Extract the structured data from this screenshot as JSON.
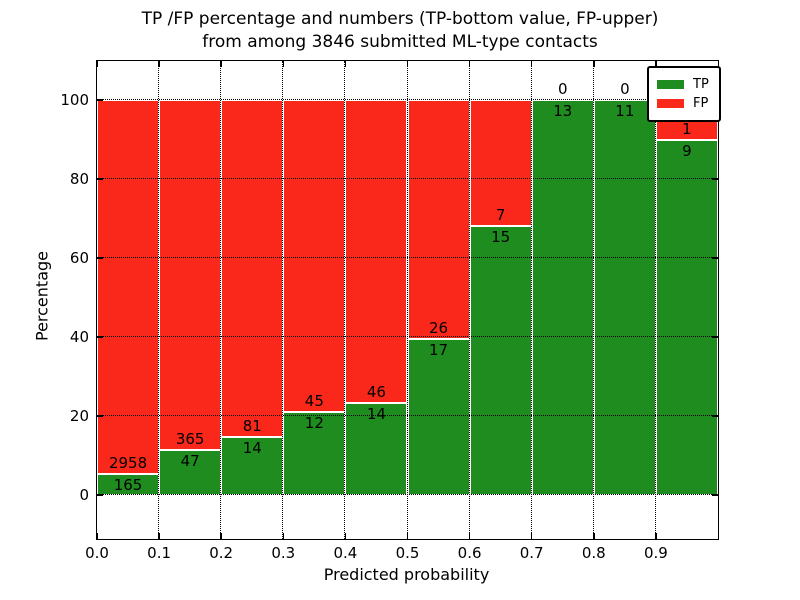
{
  "title": {
    "line1": "TP /FP percentage and numbers (TP-bottom value, FP-upper)",
    "line2": "from among 3846 submitted ML-type contacts"
  },
  "colors": {
    "tp_green": "#1e8c1e",
    "fp_red": "#fa281b",
    "grid": "#000000",
    "background": "#ffffff"
  },
  "chart_data": {
    "type": "bar",
    "variant": "stacked-percentage-histogram",
    "title": "TP /FP percentage and numbers (TP-bottom value, FP-upper) from among 3846 submitted ML-type contacts",
    "xlabel": "Predicted probability",
    "ylabel": "Percentage",
    "total_contacts": 3846,
    "bin_width": 0.1,
    "categories": [
      "0.0",
      "0.1",
      "0.2",
      "0.3",
      "0.4",
      "0.5",
      "0.6",
      "0.7",
      "0.8",
      "0.9"
    ],
    "series": [
      {
        "name": "TP",
        "color": "#1e8c1e",
        "values": [
          165,
          47,
          14,
          12,
          14,
          17,
          15,
          13,
          11,
          9
        ]
      },
      {
        "name": "FP",
        "color": "#fa281b",
        "values": [
          2958,
          365,
          81,
          45,
          46,
          26,
          7,
          0,
          0,
          1
        ]
      }
    ],
    "tp_percent_of_bin": [
      5.3,
      11.4,
      14.7,
      21.1,
      23.3,
      39.5,
      68.2,
      100.0,
      100.0,
      90.0
    ],
    "x_ticks": [
      "0.0",
      "0.1",
      "0.2",
      "0.3",
      "0.4",
      "0.5",
      "0.6",
      "0.7",
      "0.8",
      "0.9"
    ],
    "y_ticks": [
      0,
      20,
      40,
      60,
      80,
      100
    ],
    "xlim": [
      0.0,
      1.0
    ],
    "ylim_percent": [
      0,
      100
    ],
    "grid": "dotted black, both axes",
    "bar_edge_color": "#ffffff",
    "legend": {
      "position": "upper-right",
      "entries": [
        {
          "label": "TP",
          "color": "#1e8c1e"
        },
        {
          "label": "FP",
          "color": "#fa281b"
        }
      ]
    }
  }
}
